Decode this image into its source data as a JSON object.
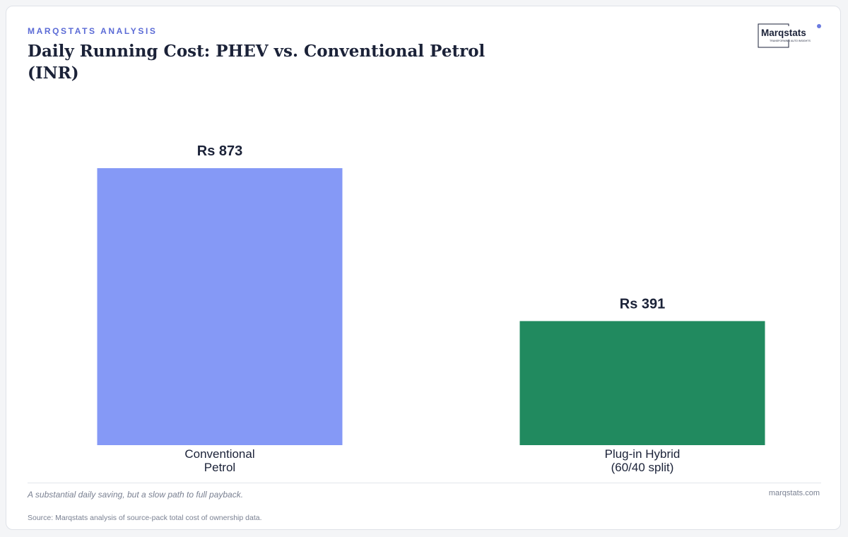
{
  "header": {
    "eyebrow": "MARQSTATS ANALYSIS",
    "title": "Daily Running Cost: PHEV vs. Conventional Petrol (INR)"
  },
  "logo": {
    "name": "Marqstats",
    "tagline": "TRANSFORMING AUTO INSIGHTS"
  },
  "chart_data": {
    "type": "bar",
    "title": "Daily Running Cost: PHEV vs. Conventional Petrol (INR)",
    "categories": [
      "Conventional\nPetrol",
      "Plug-in Hybrid\n(60/40 split)"
    ],
    "values": [
      873,
      391
    ],
    "value_labels": [
      "Rs 873",
      "Rs 391"
    ],
    "colors": [
      "#8599f6",
      "#218a5f"
    ],
    "xlabel": "",
    "ylabel": "",
    "ylim": [
      0,
      873
    ],
    "grid": false,
    "legend": "none"
  },
  "footer": {
    "note": "A substantial daily saving, but a slow path to full payback.",
    "site": "marqstats.com",
    "source": "Source: Marqstats analysis of source-pack total cost of ownership data."
  }
}
